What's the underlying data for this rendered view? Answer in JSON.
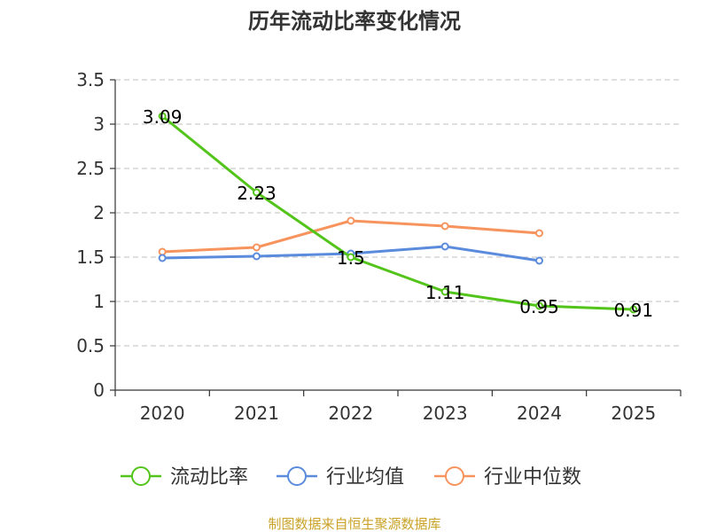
{
  "chart_data": {
    "type": "line",
    "title": "历年流动比率变化情况",
    "categories": [
      "2020",
      "2021",
      "2022",
      "2023",
      "2024",
      "2025"
    ],
    "ylim": [
      0,
      3.5
    ],
    "yticks": [
      "0",
      "0.5",
      "1",
      "1.5",
      "2",
      "2.5",
      "3",
      "3.5"
    ],
    "grid": true,
    "legend_position": "bottom",
    "series": [
      {
        "name": "流动比率",
        "color": "#52c41a",
        "values": [
          3.09,
          2.23,
          1.5,
          1.11,
          0.95,
          0.91
        ],
        "labels": [
          "3.09",
          "2.23",
          "1.5",
          "1.11",
          "0.95",
          "0.91"
        ]
      },
      {
        "name": "行业均值",
        "color": "#5b8bdc",
        "values": [
          1.49,
          1.51,
          1.54,
          1.62,
          1.46,
          null
        ]
      },
      {
        "name": "行业中位数",
        "color": "#f7945e",
        "values": [
          1.56,
          1.61,
          1.91,
          1.85,
          1.77,
          null
        ]
      }
    ],
    "source": "制图数据来自恒生聚源数据库"
  }
}
